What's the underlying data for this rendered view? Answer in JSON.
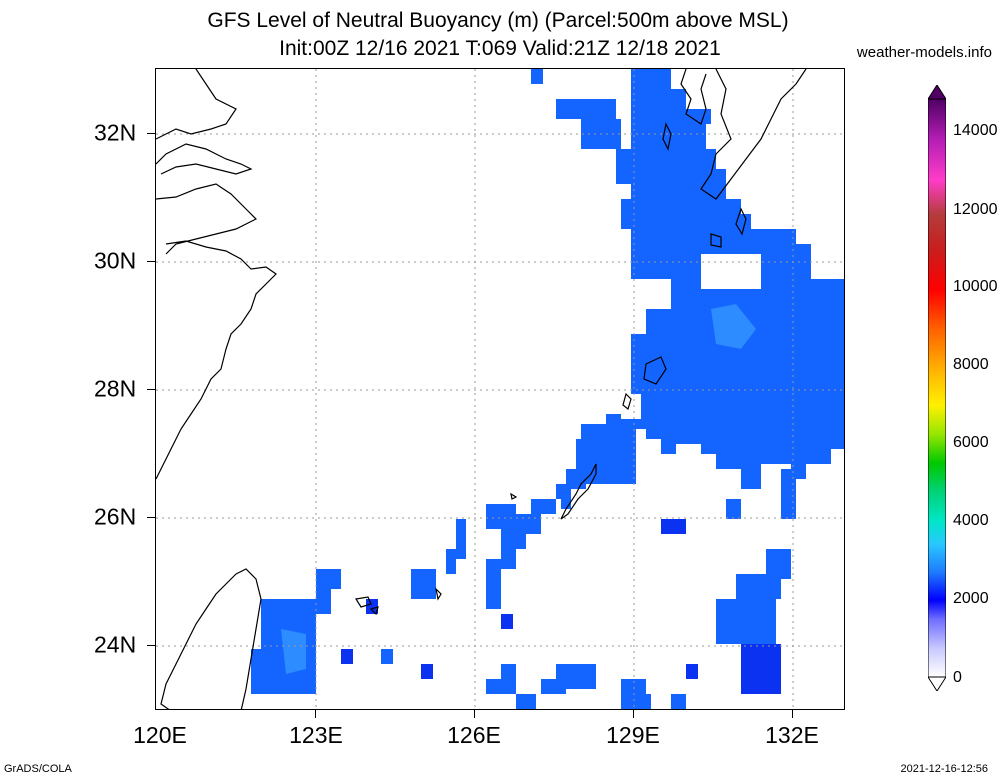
{
  "header": {
    "title_line1": "GFS Level of Neutral Buoyancy (m) (Parcel:500m above MSL)",
    "title_line2": "Init:00Z 12/16 2021 T:069 Valid:21Z 12/18 2021",
    "site": "weather-models.info"
  },
  "map": {
    "lon_range": [
      120,
      133
    ],
    "lat_range": [
      23,
      33
    ],
    "x_ticks": [
      "120E",
      "123E",
      "126E",
      "129E",
      "132E"
    ],
    "y_ticks": [
      "32N",
      "30N",
      "28N",
      "26N",
      "24N"
    ],
    "grid_style": "dotted",
    "field": "level of neutral buoyancy",
    "dominant_value_m": 2000,
    "colors": {
      "field_main": "#1464ff",
      "field_light": "#2d8cff",
      "field_dark": "#0a32f0",
      "coast": "#000000"
    }
  },
  "colorbar": {
    "labels": [
      "14000",
      "12000",
      "10000",
      "8000",
      "6000",
      "4000",
      "2000",
      "0"
    ],
    "range": [
      0,
      15000
    ]
  },
  "footer": {
    "left": "GrADS/COLA",
    "right": "2021-12-16-12:56"
  }
}
